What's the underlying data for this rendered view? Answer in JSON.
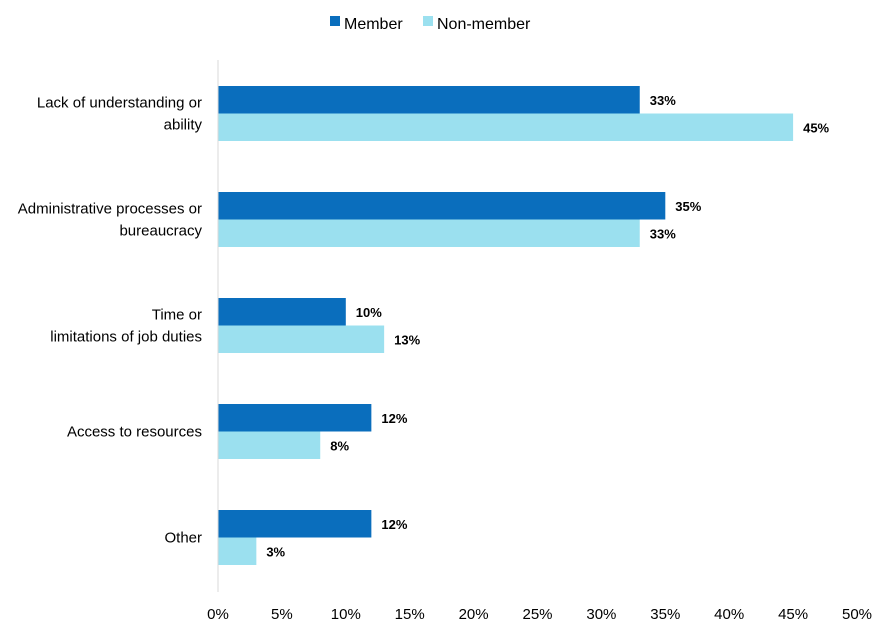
{
  "chart_data": {
    "type": "bar",
    "orientation": "horizontal",
    "title": "",
    "xlabel": "",
    "ylabel": "",
    "categories": [
      [
        "Lack of understanding or",
        "ability"
      ],
      [
        "Administrative processes or",
        "bureaucracy"
      ],
      [
        "Time or",
        "limitations of job duties"
      ],
      [
        "Access to resources"
      ],
      [
        "Other"
      ]
    ],
    "series": [
      {
        "name": "Member",
        "color": "#0a6ebd",
        "values": [
          33,
          35,
          10,
          12,
          12
        ],
        "labels": [
          "33%",
          "35%",
          "10%",
          "12%",
          "12%"
        ],
        "label_weight": "bold"
      },
      {
        "name": "Non-member",
        "color": "#9be0ef",
        "values": [
          45,
          33,
          13,
          8,
          3
        ],
        "labels": [
          "45%",
          "33%",
          "13%",
          "8%",
          "3%"
        ],
        "label_weight": "normal"
      }
    ],
    "xlim": [
      0,
      50
    ],
    "ticks": [
      0,
      5,
      10,
      15,
      20,
      25,
      30,
      35,
      40,
      45,
      50
    ],
    "tick_labels": [
      "0%",
      "5%",
      "10%",
      "15%",
      "20%",
      "25%",
      "30%",
      "35%",
      "40%",
      "45%",
      "50%"
    ],
    "grid": false,
    "legend_position": "top-center"
  }
}
